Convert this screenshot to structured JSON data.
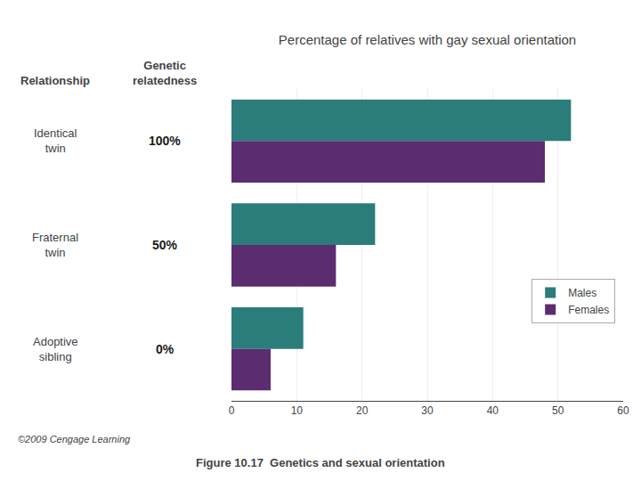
{
  "chart_data": {
    "type": "bar",
    "orientation": "horizontal",
    "title": "Percentage of relatives with gay sexual orientation",
    "categories": [
      "Identical\ntwin",
      "Fraternal\ntwin",
      "Adoptive\nsibling"
    ],
    "series": [
      {
        "name": "Males",
        "color": "#2a7d7b",
        "values": [
          52,
          22,
          11
        ]
      },
      {
        "name": "Females",
        "color": "#5b2c6f",
        "values": [
          48,
          16,
          6
        ]
      }
    ],
    "xlim": [
      0,
      60
    ],
    "xticks": [
      0,
      10,
      20,
      30,
      40,
      50,
      60
    ],
    "grid": true,
    "legend": "right",
    "tick_labels": "x",
    "annotations": [
      {
        "text": "Relationship"
      },
      {
        "text": "Genetic\nrelatedness"
      },
      {
        "text": "100%",
        "category": "Identical\ntwin"
      },
      {
        "text": "50%",
        "category": "Fraternal\ntwin"
      },
      {
        "text": "0%",
        "category": "Adoptive\nsibling"
      },
      {
        "text": "©2009 Cengage Learning"
      },
      {
        "text": "Figure 10.17  Genetics and sexual orientation"
      }
    ]
  }
}
